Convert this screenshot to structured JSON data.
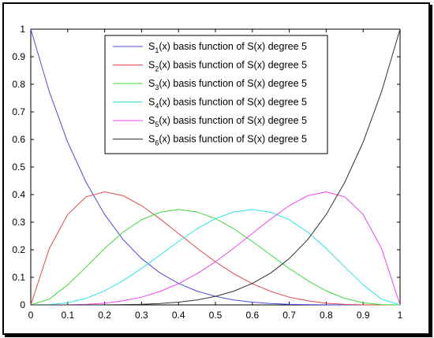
{
  "chart_data": {
    "type": "line",
    "title": "",
    "xlabel": "",
    "ylabel": "",
    "xlim": [
      0,
      1
    ],
    "ylim": [
      0,
      1
    ],
    "grid": false,
    "legend_position": "top-center",
    "x_ticks": [
      "0",
      "0.1",
      "0.2",
      "0.3",
      "0.4",
      "0.5",
      "0.6",
      "0.7",
      "0.8",
      "0.9",
      "1"
    ],
    "y_ticks": [
      "0",
      "0.1",
      "0.2",
      "0.3",
      "0.4",
      "0.5",
      "0.6",
      "0.7",
      "0.8",
      "0.9",
      "1"
    ],
    "x": [
      0,
      0.05,
      0.1,
      0.15,
      0.2,
      0.25,
      0.3,
      0.35,
      0.4,
      0.45,
      0.5,
      0.55,
      0.6,
      0.65,
      0.7,
      0.75,
      0.8,
      0.85,
      0.9,
      0.95,
      1
    ],
    "series": [
      {
        "name": "S1(x) basis function of S(x) degree 5",
        "legend_main": "S",
        "legend_sub": "1",
        "legend_rest": "(x) basis function of S(x) degree 5",
        "color": "#4a4ae0",
        "values": [
          1,
          0.774,
          0.59,
          0.444,
          0.328,
          0.237,
          0.168,
          0.116,
          0.078,
          0.05,
          0.031,
          0.018,
          0.01,
          0.005,
          0.002,
          0.001,
          0.0003,
          0.0001,
          0,
          0,
          0
        ]
      },
      {
        "name": "S2(x) basis function of S(x) degree 5",
        "legend_main": "S",
        "legend_sub": "2",
        "legend_rest": "(x) basis function of S(x) degree 5",
        "color": "#e04a4a",
        "values": [
          0,
          0.204,
          0.328,
          0.392,
          0.41,
          0.396,
          0.36,
          0.312,
          0.259,
          0.206,
          0.156,
          0.113,
          0.077,
          0.049,
          0.028,
          0.015,
          0.006,
          0.002,
          0.0005,
          0,
          0
        ]
      },
      {
        "name": "S3(x) basis function of S(x) degree 5",
        "legend_main": "S",
        "legend_sub": "3",
        "legend_rest": "(x) basis function of S(x) degree 5",
        "color": "#3ddc3d",
        "values": [
          0,
          0.021,
          0.073,
          0.138,
          0.205,
          0.264,
          0.309,
          0.336,
          0.346,
          0.337,
          0.313,
          0.276,
          0.23,
          0.181,
          0.132,
          0.088,
          0.051,
          0.024,
          0.008,
          0.001,
          0
        ]
      },
      {
        "name": "S4(x) basis function of S(x) degree 5",
        "legend_main": "S",
        "legend_sub": "4",
        "legend_rest": "(x) basis function of S(x) degree 5",
        "color": "#2ee6e6",
        "values": [
          0,
          0.001,
          0.008,
          0.024,
          0.051,
          0.088,
          0.132,
          0.181,
          0.23,
          0.276,
          0.313,
          0.337,
          0.346,
          0.336,
          0.309,
          0.264,
          0.205,
          0.138,
          0.073,
          0.021,
          0
        ]
      },
      {
        "name": "S5(x) basis function of S(x) degree 5",
        "legend_main": "S",
        "legend_sub": "5",
        "legend_rest": "(x) basis function of S(x) degree 5",
        "color": "#ee44ee",
        "values": [
          0,
          0,
          0.0005,
          0.002,
          0.006,
          0.015,
          0.028,
          0.049,
          0.077,
          0.113,
          0.156,
          0.206,
          0.259,
          0.312,
          0.36,
          0.396,
          0.41,
          0.392,
          0.328,
          0.204,
          0
        ]
      },
      {
        "name": "S6(x) basis function of S(x) degree 5",
        "legend_main": "S",
        "legend_sub": "6",
        "legend_rest": "(x) basis function of S(x) degree 5",
        "color": "#333333",
        "values": [
          0,
          0,
          0,
          0.0001,
          0.0003,
          0.001,
          0.002,
          0.005,
          0.01,
          0.018,
          0.031,
          0.05,
          0.078,
          0.116,
          0.168,
          0.237,
          0.328,
          0.444,
          0.59,
          0.774,
          1
        ]
      }
    ]
  }
}
